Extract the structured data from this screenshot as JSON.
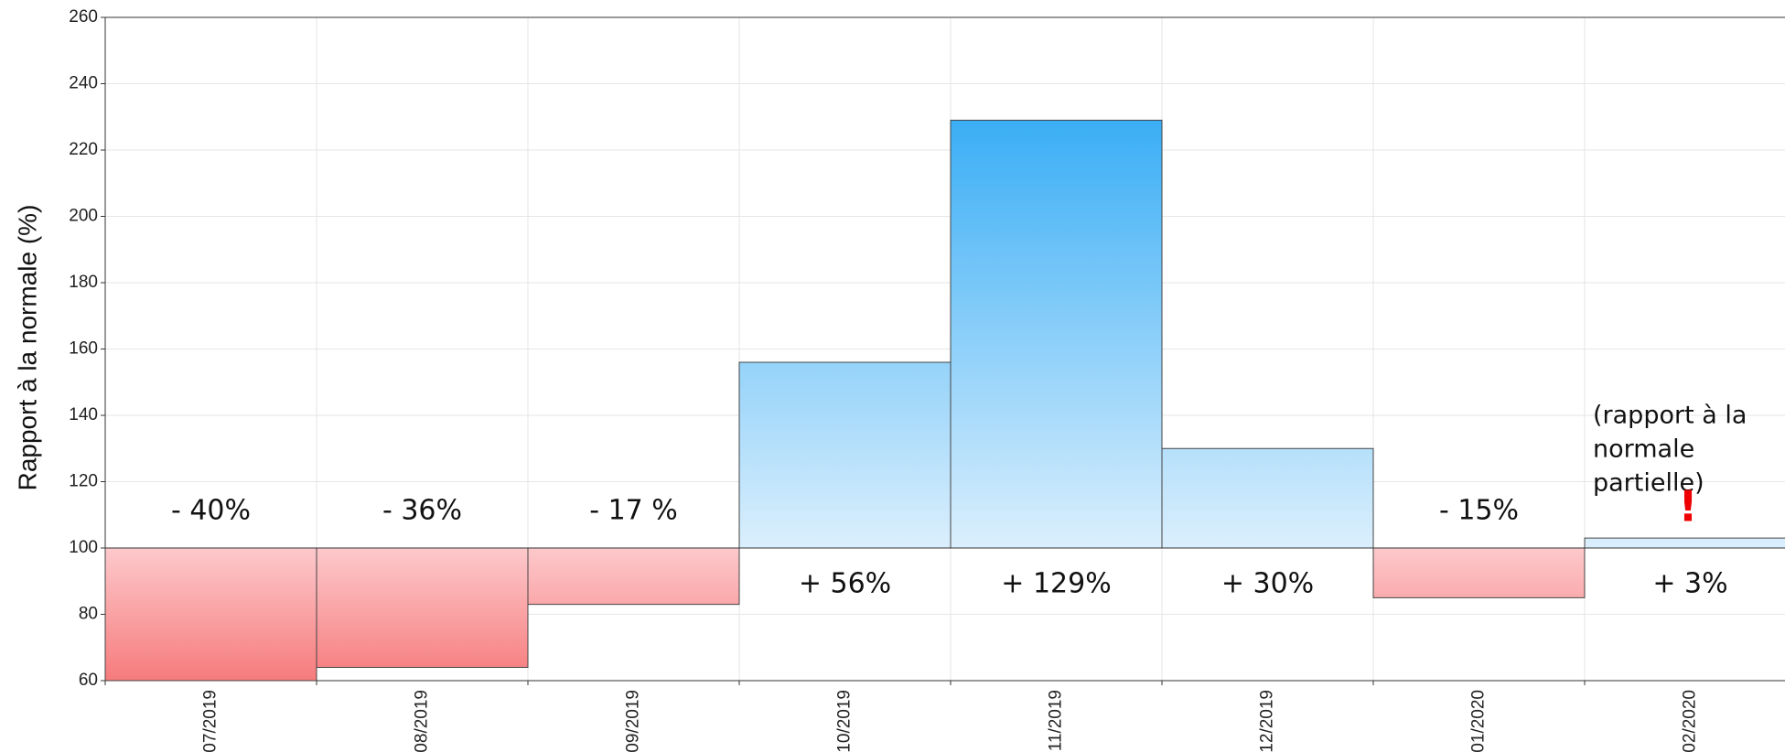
{
  "chart_data": {
    "type": "bar",
    "y_label": "Rapport à la normale (%)",
    "categories": [
      "07/2019",
      "08/2019",
      "09/2019",
      "10/2019",
      "11/2019",
      "12/2019",
      "01/2020",
      "02/2020"
    ],
    "values": [
      60,
      64,
      83,
      156,
      229,
      130,
      85,
      103
    ],
    "value_labels": [
      "- 40%",
      "- 36%",
      "- 17 %",
      "+ 56%",
      "+ 129%",
      "+ 30%",
      "- 15%",
      "+ 3%"
    ],
    "baseline": 100,
    "colors": {
      "above": [
        "#dbeffd",
        "#3aaef5"
      ],
      "below": [
        "#fdc9cc",
        "#f67b7c"
      ]
    },
    "ylim": [
      60,
      260
    ],
    "yticks": [
      60,
      80,
      100,
      120,
      140,
      160,
      180,
      200,
      220,
      240,
      260
    ],
    "grid": true,
    "note": {
      "lines": [
        "(rapport à la",
        "normale",
        "partielle)"
      ],
      "mark": "!"
    }
  }
}
